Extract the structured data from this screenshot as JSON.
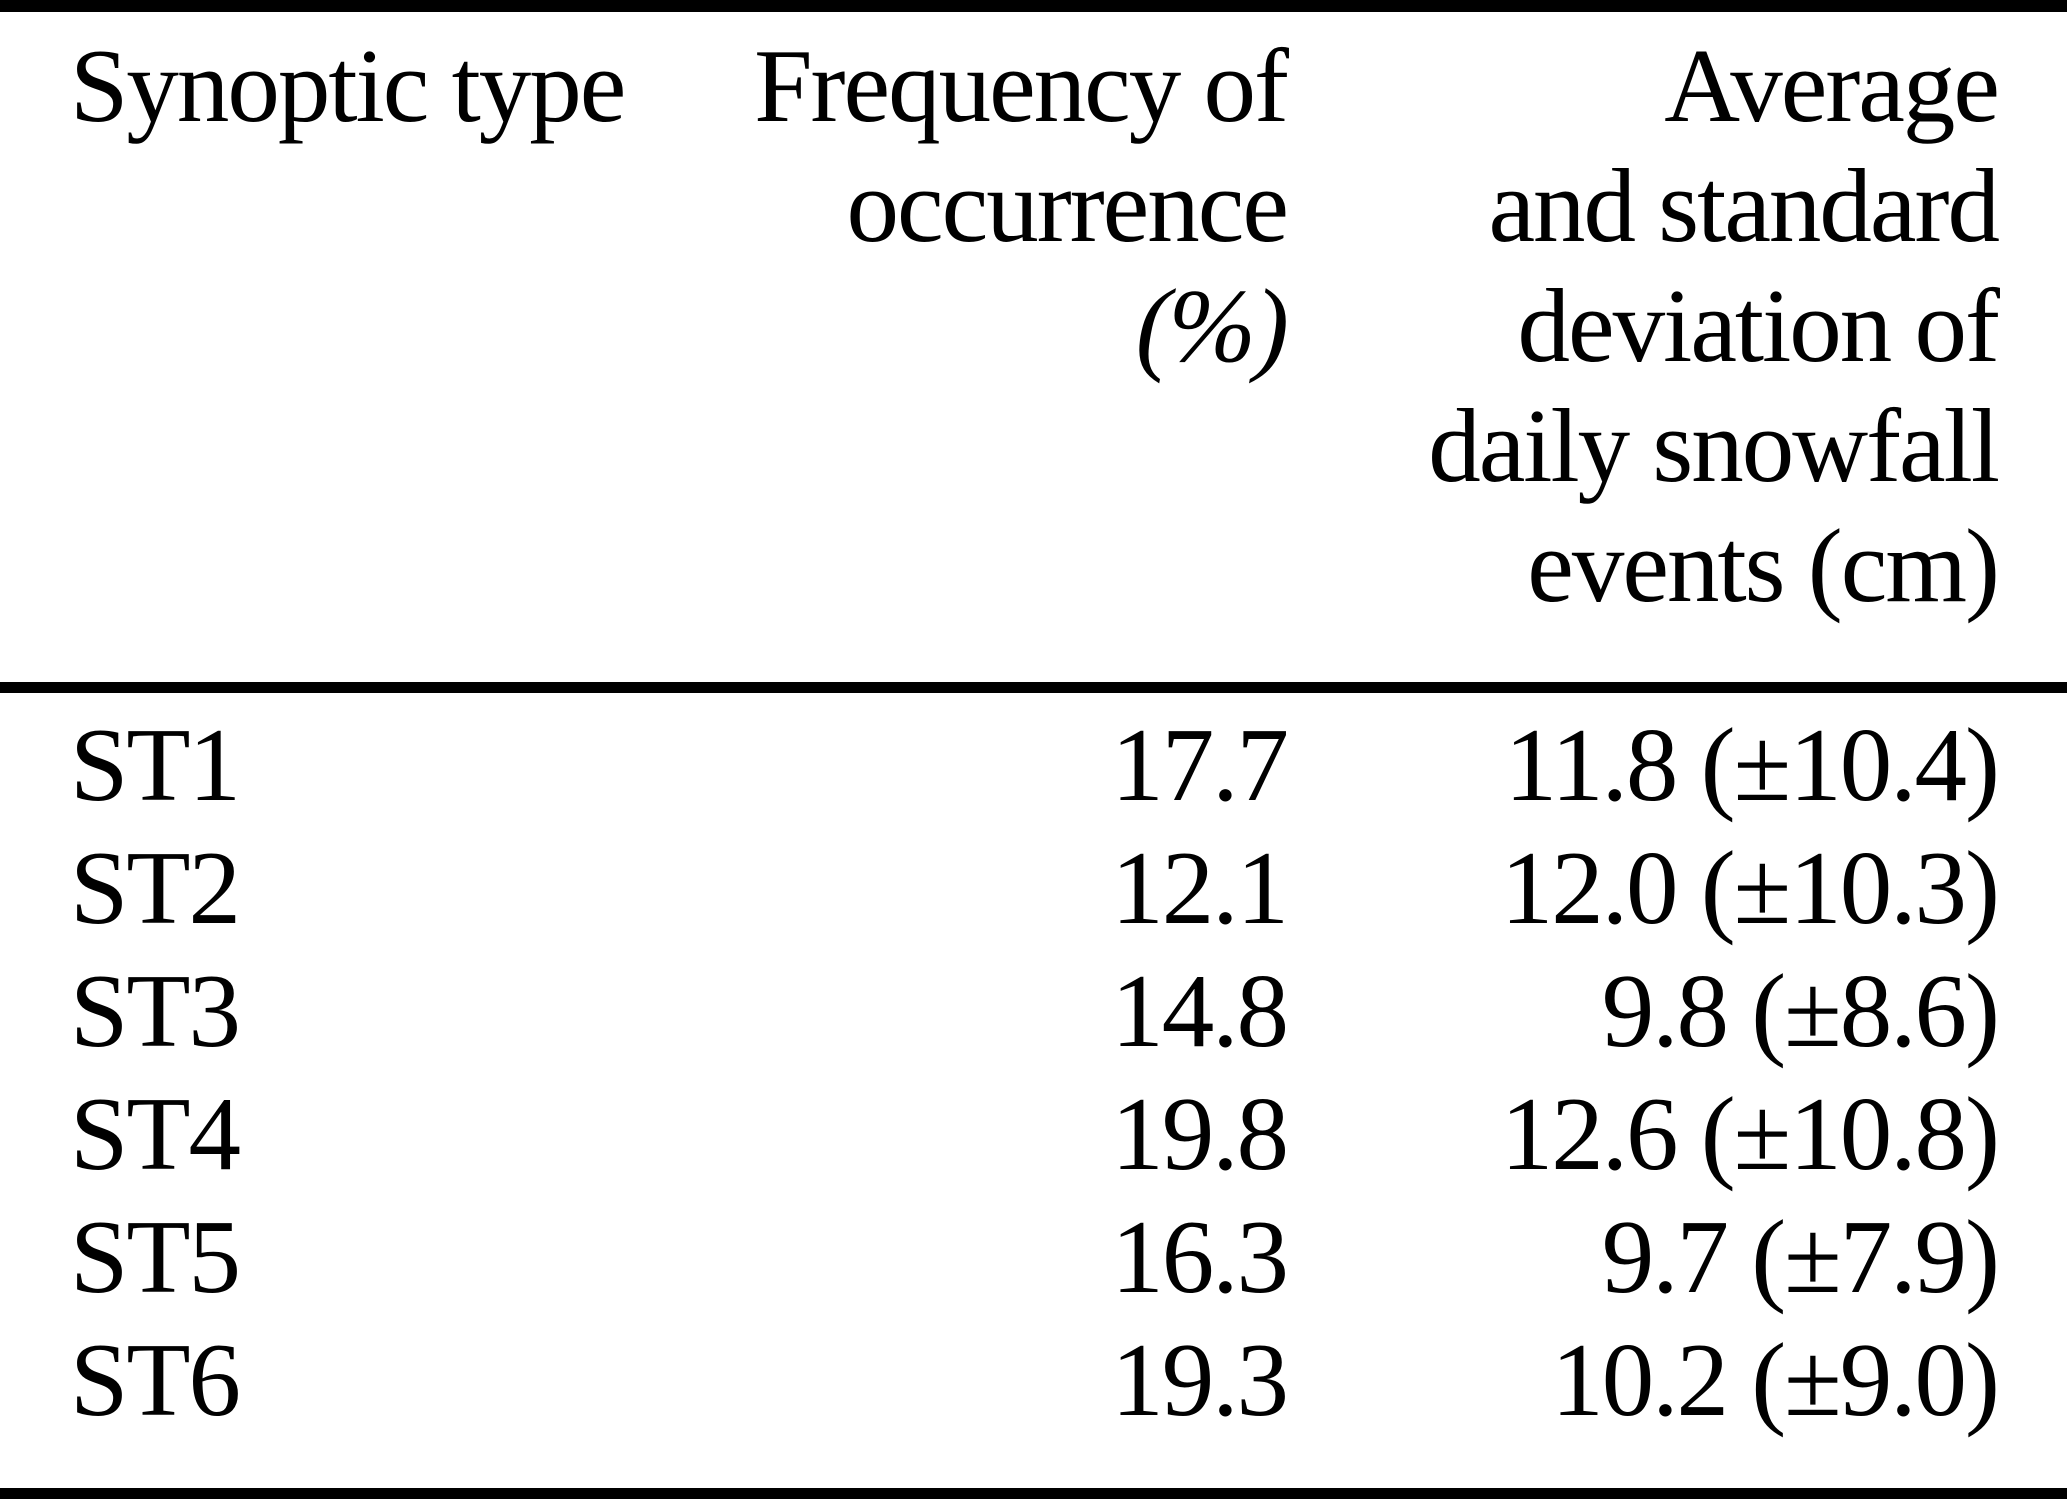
{
  "page": {
    "background_color": "#ffffff",
    "text_color": "#000000"
  },
  "table": {
    "header": {
      "col1_lines": [
        "Synoptic type"
      ],
      "col2_lines": [
        "Frequency of",
        "occurrence",
        "(%)"
      ],
      "col3_lines": [
        "Average",
        "and standard",
        "deviation of",
        "daily snowfall",
        "events (cm)"
      ]
    },
    "rows": [
      {
        "type": "ST1",
        "frequency": "17.7",
        "snowfall": "11.8 (±10.4)"
      },
      {
        "type": "ST2",
        "frequency": "12.1",
        "snowfall": "12.0 (±10.3)"
      },
      {
        "type": "ST3",
        "frequency": "14.8",
        "snowfall": "9.8 (±8.6)"
      },
      {
        "type": "ST4",
        "frequency": "19.8",
        "snowfall": "12.6 (±10.8)"
      },
      {
        "type": "ST5",
        "frequency": "16.3",
        "snowfall": "9.7 (±7.9)"
      },
      {
        "type": "ST6",
        "frequency": "19.3",
        "snowfall": "10.2 (±9.0)"
      }
    ]
  },
  "chart_data": {
    "type": "table",
    "columns": [
      "Synoptic type",
      "Frequency of occurrence (%)",
      "Average and standard deviation of daily snowfall events (cm)"
    ],
    "rows": [
      {
        "synoptic_type": "ST1",
        "frequency_pct": 17.7,
        "avg_snowfall_cm": 11.8,
        "std_dev_cm": 10.4
      },
      {
        "synoptic_type": "ST2",
        "frequency_pct": 12.1,
        "avg_snowfall_cm": 12.0,
        "std_dev_cm": 10.3
      },
      {
        "synoptic_type": "ST3",
        "frequency_pct": 14.8,
        "avg_snowfall_cm": 9.8,
        "std_dev_cm": 8.6
      },
      {
        "synoptic_type": "ST4",
        "frequency_pct": 19.8,
        "avg_snowfall_cm": 12.6,
        "std_dev_cm": 10.8
      },
      {
        "synoptic_type": "ST5",
        "frequency_pct": 16.3,
        "avg_snowfall_cm": 9.7,
        "std_dev_cm": 7.9
      },
      {
        "synoptic_type": "ST6",
        "frequency_pct": 19.3,
        "avg_snowfall_cm": 10.2,
        "std_dev_cm": 9.0
      }
    ]
  }
}
